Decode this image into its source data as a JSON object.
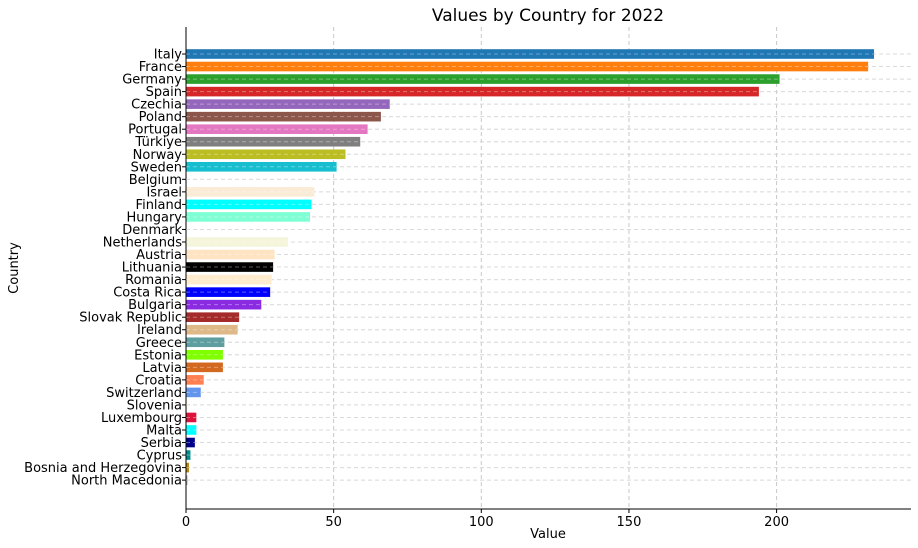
{
  "chart_data": {
    "type": "bar",
    "orientation": "horizontal",
    "title": "Values by Country for 2022",
    "xlabel": "Value",
    "ylabel": "Country",
    "xlim": [
      0,
      245
    ],
    "xticks": [
      0,
      50,
      100,
      150,
      200
    ],
    "grid": true,
    "categories": [
      "Italy",
      "France",
      "Germany",
      "Spain",
      "Czechia",
      "Poland",
      "Portugal",
      "Türkiye",
      "Norway",
      "Sweden",
      "Belgium",
      "Israel",
      "Finland",
      "Hungary",
      "Denmark",
      "Netherlands",
      "Austria",
      "Lithuania",
      "Romania",
      "Costa Rica",
      "Bulgaria",
      "Slovak Republic",
      "Ireland",
      "Greece",
      "Estonia",
      "Latvia",
      "Croatia",
      "Switzerland",
      "Slovenia",
      "Luxembourg",
      "Malta",
      "Serbia",
      "Cyprus",
      "Bosnia and Herzegovina",
      "North Macedonia"
    ],
    "values": [
      233,
      231,
      201,
      194,
      69,
      66,
      61.5,
      59,
      54,
      51,
      0.5,
      43.5,
      42.5,
      42,
      0.5,
      34.5,
      30,
      29.5,
      29,
      28.5,
      25.5,
      18,
      17.5,
      13,
      12.5,
      12.5,
      6,
      5,
      0.3,
      3.5,
      3.5,
      3,
      1.5,
      1,
      0.5
    ],
    "colors": [
      "#1f77b4",
      "#ff7f0e",
      "#2ca02c",
      "#d62728",
      "#9467bd",
      "#8c564b",
      "#e377c2",
      "#7f7f7f",
      "#bcbd22",
      "#17becf",
      "#f0f8ff",
      "#faebd7",
      "#00ffff",
      "#7fffd4",
      "#f0ffff",
      "#f5f5dc",
      "#ffe4c4",
      "#000000",
      "#ffebcd",
      "#0000ff",
      "#8a2be2",
      "#a52a2a",
      "#deb887",
      "#5f9ea0",
      "#7fff00",
      "#d2691e",
      "#ff7f50",
      "#6495ed",
      "#fff8dc",
      "#dc143c",
      "#00ffff",
      "#00008b",
      "#008b8b",
      "#b8860b",
      "#a9a9a9"
    ]
  }
}
